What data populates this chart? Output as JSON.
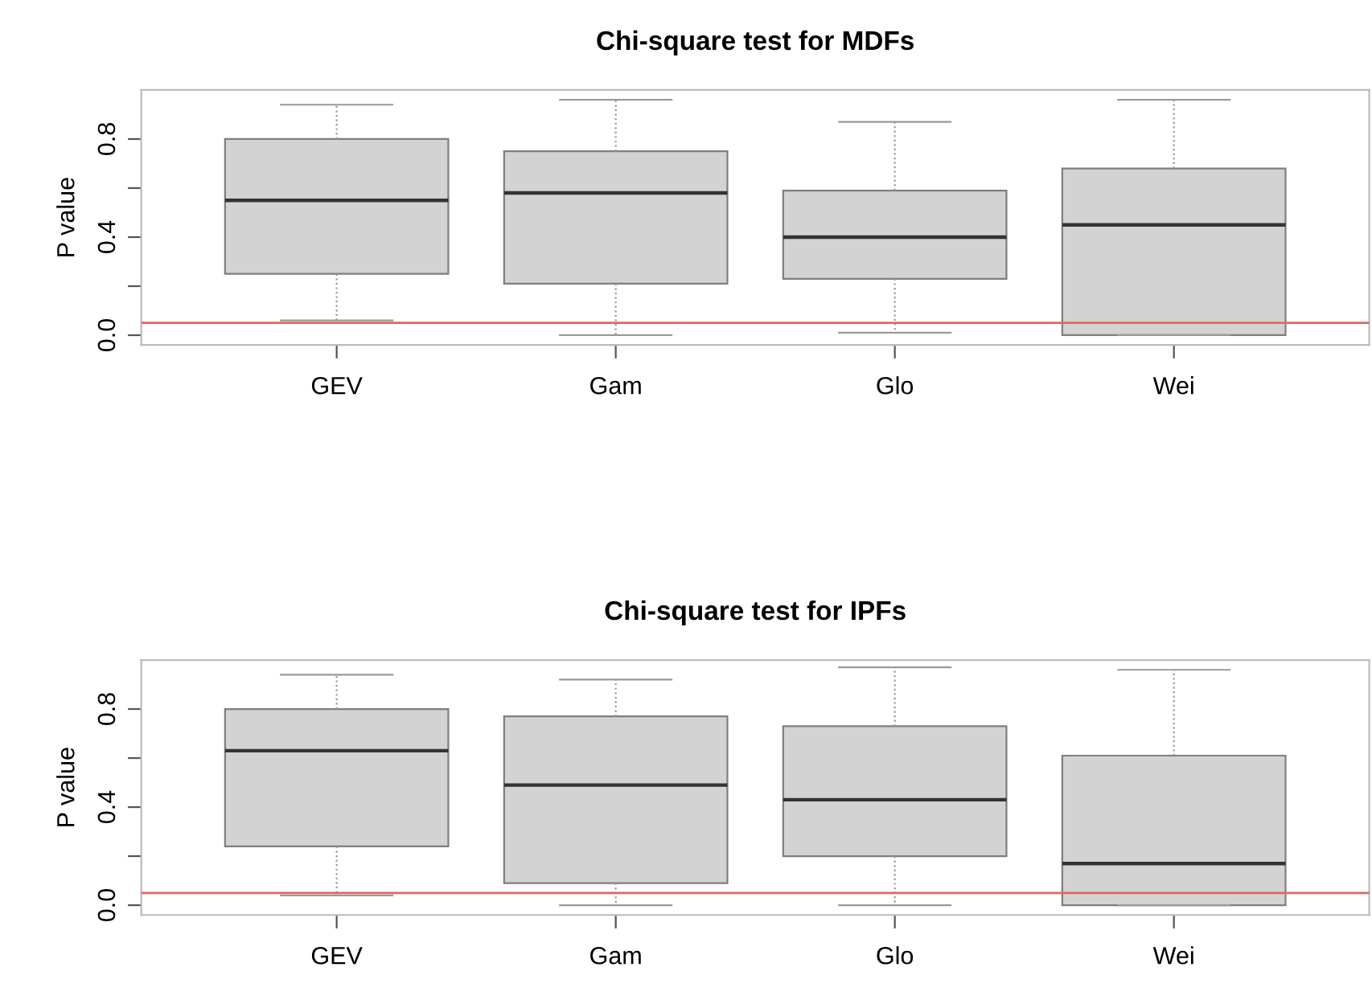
{
  "chart_data": [
    {
      "type": "box",
      "title": "Chi-square test for MDFs",
      "ylabel": "P value",
      "categories": [
        "GEV",
        "Gam",
        "Glo",
        "Wei"
      ],
      "boxes": [
        {
          "low": 0.06,
          "q1": 0.25,
          "median": 0.55,
          "q3": 0.8,
          "high": 0.94
        },
        {
          "low": 0.0,
          "q1": 0.21,
          "median": 0.58,
          "q3": 0.75,
          "high": 0.96
        },
        {
          "low": 0.01,
          "q1": 0.23,
          "median": 0.4,
          "q3": 0.59,
          "high": 0.87
        },
        {
          "low": 0.0,
          "q1": 0.0,
          "median": 0.45,
          "q3": 0.68,
          "high": 0.96
        }
      ],
      "color": "#d3d3d3",
      "ylim": [
        -0.04,
        1.0
      ],
      "yticks": [
        {
          "value": 0.0,
          "label": "0.0"
        },
        {
          "value": 0.2,
          "label": null
        },
        {
          "value": 0.4,
          "label": "0.4"
        },
        {
          "value": 0.6,
          "label": null
        },
        {
          "value": 0.8,
          "label": "0.8"
        }
      ],
      "ref_lines": [
        {
          "axis": "y",
          "value": 0.05,
          "color": "#e06666"
        }
      ],
      "grid": false,
      "legend": false
    },
    {
      "type": "box",
      "title": "Chi-square test for IPFs",
      "ylabel": "P value",
      "categories": [
        "GEV",
        "Gam",
        "Glo",
        "Wei"
      ],
      "boxes": [
        {
          "low": 0.04,
          "q1": 0.24,
          "median": 0.63,
          "q3": 0.8,
          "high": 0.94
        },
        {
          "low": 0.0,
          "q1": 0.09,
          "median": 0.49,
          "q3": 0.77,
          "high": 0.92
        },
        {
          "low": 0.0,
          "q1": 0.2,
          "median": 0.43,
          "q3": 0.73,
          "high": 0.97
        },
        {
          "low": 0.0,
          "q1": 0.0,
          "median": 0.17,
          "q3": 0.61,
          "high": 0.96
        }
      ],
      "color": "#d3d3d3",
      "ylim": [
        -0.04,
        1.0
      ],
      "yticks": [
        {
          "value": 0.0,
          "label": "0.0"
        },
        {
          "value": 0.2,
          "label": null
        },
        {
          "value": 0.4,
          "label": "0.4"
        },
        {
          "value": 0.6,
          "label": null
        },
        {
          "value": 0.8,
          "label": "0.8"
        }
      ],
      "ref_lines": [
        {
          "axis": "y",
          "value": 0.05,
          "color": "#e06666"
        }
      ],
      "grid": false,
      "legend": false
    }
  ]
}
